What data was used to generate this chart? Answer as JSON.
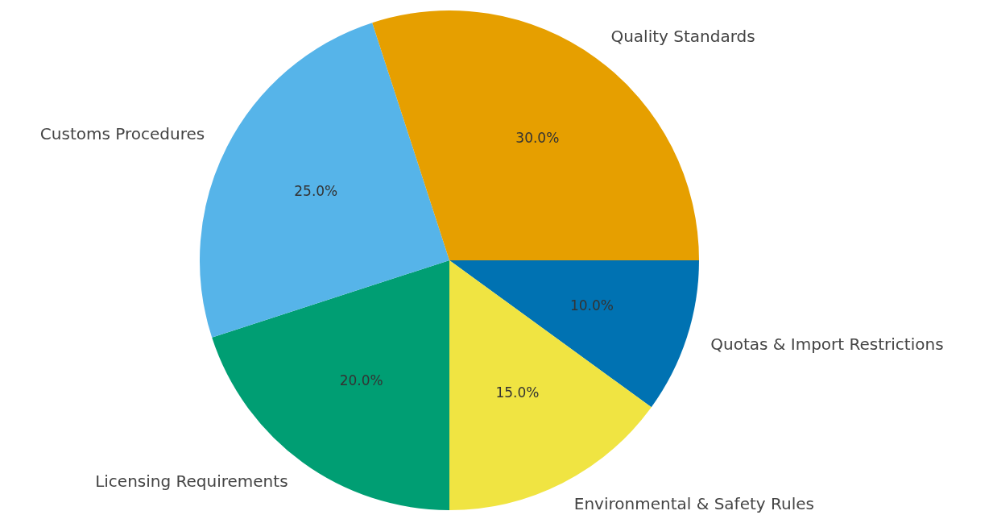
{
  "chart_data": {
    "type": "pie",
    "categories": [
      "Quotas & Import Restrictions",
      "Environmental & Safety Rules",
      "Licensing Requirements",
      "Customs Procedures",
      "Quality Standards"
    ],
    "values": [
      10,
      15,
      20,
      25,
      30
    ],
    "colors": [
      "#0072b2",
      "#f0e442",
      "#009e73",
      "#56b4e9",
      "#e69f00"
    ],
    "value_labels": [
      "10.0%",
      "15.0%",
      "20.0%",
      "25.0%",
      "30.0%"
    ],
    "legend": false
  }
}
